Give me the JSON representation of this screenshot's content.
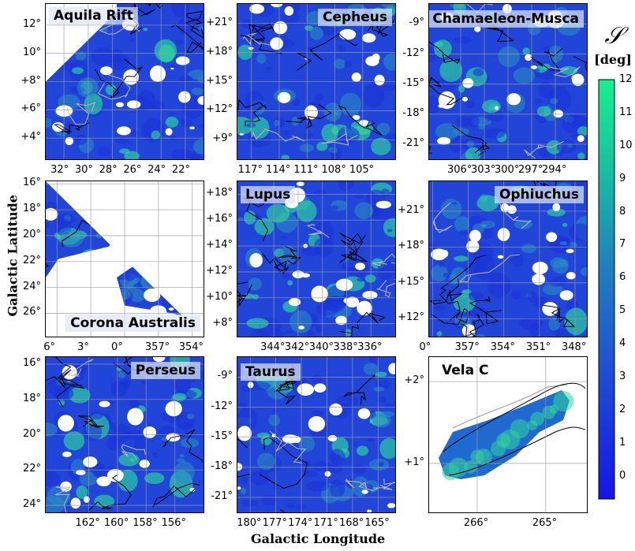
{
  "axes": {
    "xlabel": "Galactic Longitude",
    "ylabel": "Galactic Latitude"
  },
  "colorbar": {
    "symbol": "𝒮",
    "unit": "[deg]",
    "ticks": [
      "12",
      "11",
      "10",
      "9",
      "8",
      "7",
      "6",
      "5",
      "4",
      "3",
      "2",
      "1",
      "0"
    ],
    "range": [
      -0.7,
      12
    ],
    "colors": {
      "low": "#1515e6",
      "mid": "#1f68c9",
      "high": "#17f08e"
    }
  },
  "chart_data": [
    {
      "type": "heatmap",
      "title": "Aquila Rift",
      "x_ticks": [
        "32°",
        "30°",
        "28°",
        "26°",
        "24°",
        "22°"
      ],
      "y_ticks": [
        "12°",
        "10°",
        "+8°",
        "+6°",
        "+4°"
      ],
      "xlim": [
        33.5,
        20.5
      ],
      "ylim": [
        2.5,
        13.5
      ]
    },
    {
      "type": "heatmap",
      "title": "Cepheus",
      "x_ticks": [
        "117°",
        "114°",
        "111°",
        "108°",
        "105°"
      ],
      "y_ticks": [
        "+21°",
        "+18°",
        "+15°",
        "+12°",
        "+9°"
      ],
      "xlim": [
        118.5,
        101.5
      ],
      "ylim": [
        7,
        23
      ]
    },
    {
      "type": "heatmap",
      "title": "Chamaeleon-Musca",
      "x_ticks": [
        "306°",
        "303°",
        "300°",
        "297°",
        "294°"
      ],
      "y_ticks": [
        "-9°",
        "-12°",
        "-15°",
        "-18°",
        "-21°"
      ],
      "xlim": [
        310,
        290
      ],
      "ylim": [
        -22.5,
        -7
      ]
    },
    {
      "type": "heatmap",
      "title": "Corona Australis",
      "x_ticks": [
        "6°",
        "3°",
        "0°",
        "357°",
        "354°"
      ],
      "y_ticks": [
        "16°",
        "18°",
        "20°",
        "22°",
        "24°",
        "26°"
      ],
      "xlim": [
        7,
        353
      ],
      "ylim": [
        27.8,
        15.8
      ]
    },
    {
      "type": "heatmap",
      "title": "Lupus",
      "x_ticks": [
        "344°",
        "342°",
        "340°",
        "338°",
        "336°"
      ],
      "y_ticks": [
        "+18°",
        "+16°",
        "+14°",
        "+12°",
        "+10°",
        "+8°"
      ],
      "xlim": [
        347,
        334
      ],
      "ylim": [
        7,
        19
      ]
    },
    {
      "type": "heatmap",
      "title": "Ophiuchus",
      "x_ticks": [
        "0°",
        "357°",
        "354°",
        "351°",
        "348°"
      ],
      "y_ticks": [
        "+21°",
        "+18°",
        "+15°",
        "+12°"
      ],
      "xlim": [
        360.3,
        347
      ],
      "ylim": [
        10.5,
        23.5
      ]
    },
    {
      "type": "heatmap",
      "title": "Perseus",
      "x_ticks": [
        "162°",
        "160°",
        "158°",
        "156°"
      ],
      "y_ticks": [
        "16°",
        "18°",
        "20°",
        "22°",
        "24°"
      ],
      "xlim": [
        165,
        154
      ],
      "ylim": [
        24.4,
        15.6
      ]
    },
    {
      "type": "heatmap",
      "title": "Taurus",
      "x_ticks": [
        "180°",
        "177°",
        "174°",
        "171°",
        "168°",
        "165°"
      ],
      "y_ticks": [
        "-9°",
        "-12°",
        "-15°",
        "-18°",
        "-21°"
      ],
      "xlim": [
        181.5,
        163
      ],
      "ylim": [
        -22.5,
        -7
      ]
    },
    {
      "type": "heatmap",
      "title": "Vela C",
      "x_ticks": [
        "266°",
        "265°"
      ],
      "y_ticks": [
        "+2°",
        "+1°"
      ],
      "xlim": [
        266.7,
        264.4
      ],
      "ylim": [
        0.4,
        2.3
      ]
    }
  ]
}
